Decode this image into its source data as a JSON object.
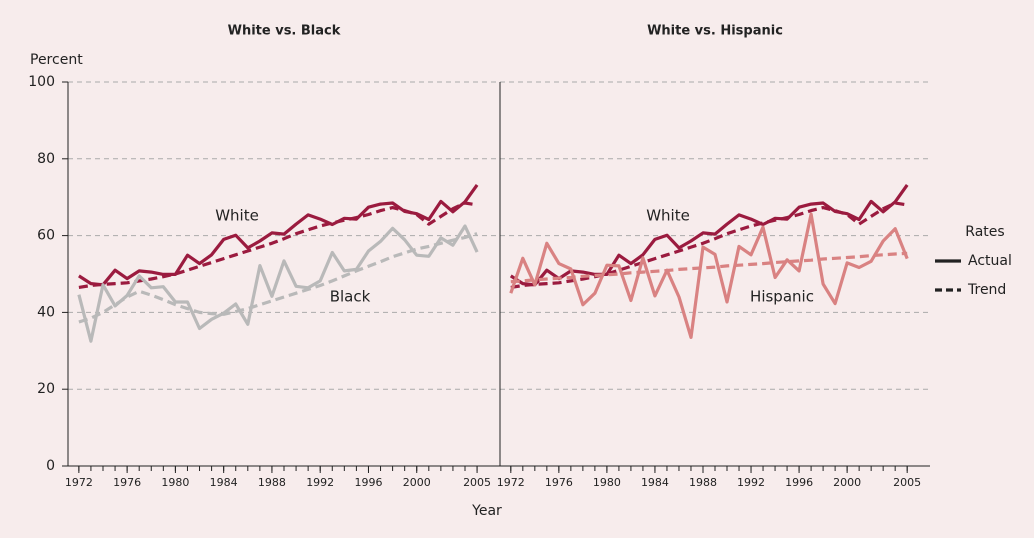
{
  "chart_data": [
    {
      "type": "line",
      "title": "White vs. Black",
      "x": [
        1972,
        1973,
        1974,
        1975,
        1976,
        1977,
        1978,
        1979,
        1980,
        1981,
        1982,
        1983,
        1984,
        1985,
        1986,
        1987,
        1988,
        1989,
        1990,
        1991,
        1992,
        1993,
        1994,
        1995,
        1996,
        1997,
        1998,
        1999,
        2000,
        2001,
        2002,
        2003,
        2004,
        2005
      ],
      "xlim": [
        1971.1,
        2006.9
      ],
      "xticks": [
        1972,
        1976,
        1980,
        1984,
        1988,
        1992,
        1996,
        2000,
        2005
      ],
      "ylim": [
        0,
        100
      ],
      "yticks": [
        0,
        20,
        40,
        60,
        80,
        100
      ],
      "grid": true,
      "series": [
        {
          "name": "White",
          "color": "#9b1b3f",
          "values": [
            49.5,
            47.5,
            47.2,
            51,
            48.8,
            50.8,
            50.5,
            49.9,
            49.9,
            54.9,
            52.7,
            55,
            59,
            60.1,
            56.8,
            58.6,
            60.7,
            60.4,
            63,
            65.4,
            64.3,
            62.9,
            64.5,
            64.3,
            67.4,
            68.2,
            68.5,
            66.3,
            65.7,
            64.2,
            68.9,
            66.2,
            68.8,
            73.2
          ],
          "trend": [
            46.5,
            47,
            47.3,
            47.5,
            47.7,
            48.2,
            48.7,
            49.3,
            50,
            51,
            52,
            53,
            54,
            55,
            56,
            57,
            58,
            59.2,
            60.5,
            61.5,
            62.5,
            63.3,
            64,
            64.7,
            65.5,
            66.5,
            67.3,
            66.5,
            65.5,
            63,
            65,
            67,
            68.5,
            68
          ]
        },
        {
          "name": "Black",
          "color": "#b9b9b9",
          "values": [
            44.6,
            32.5,
            47.2,
            41.7,
            44.4,
            49.5,
            46.4,
            46.7,
            42.7,
            42.7,
            35.8,
            38.2,
            39.8,
            42.2,
            36.9,
            52.2,
            44.2,
            53.4,
            46.8,
            46.4,
            48.2,
            55.6,
            50.8,
            51.2,
            56,
            58.5,
            61.9,
            58.9,
            54.9,
            54.6,
            59.4,
            57.5,
            62.5,
            55.7
          ],
          "trend": [
            37.5,
            38.5,
            40,
            42,
            44,
            45.5,
            44.5,
            43.3,
            42,
            41,
            40,
            39.7,
            39.5,
            40.2,
            41,
            42,
            43,
            44,
            45,
            46,
            47,
            48.2,
            49.5,
            50.8,
            52,
            53.2,
            54.5,
            55.5,
            56.5,
            57.2,
            58,
            58.8,
            59.5,
            60.5
          ]
        }
      ]
    },
    {
      "type": "line",
      "title": "White vs. Hispanic",
      "x": [
        1972,
        1973,
        1974,
        1975,
        1976,
        1977,
        1978,
        1979,
        1980,
        1981,
        1982,
        1983,
        1984,
        1985,
        1986,
        1987,
        1988,
        1989,
        1990,
        1991,
        1992,
        1993,
        1994,
        1995,
        1996,
        1997,
        1998,
        1999,
        2000,
        2001,
        2002,
        2003,
        2004,
        2005
      ],
      "xlim": [
        1971.1,
        2006.9
      ],
      "xticks": [
        1972,
        1976,
        1980,
        1984,
        1988,
        1992,
        1996,
        2000,
        2005
      ],
      "ylim": [
        0,
        100
      ],
      "yticks": [
        0,
        20,
        40,
        60,
        80,
        100
      ],
      "grid": true,
      "series": [
        {
          "name": "White",
          "color": "#9b1b3f",
          "values": [
            49.5,
            47.5,
            47.2,
            51,
            48.8,
            50.8,
            50.5,
            49.9,
            49.9,
            54.9,
            52.7,
            55,
            59,
            60.1,
            56.8,
            58.6,
            60.7,
            60.4,
            63,
            65.4,
            64.3,
            62.9,
            64.5,
            64.3,
            67.4,
            68.2,
            68.5,
            66.3,
            65.7,
            64.2,
            68.9,
            66.2,
            68.8,
            73.2
          ],
          "trend": [
            46.5,
            47,
            47.3,
            47.5,
            47.7,
            48.2,
            48.7,
            49.3,
            50,
            51,
            52,
            53,
            54,
            55,
            56,
            57,
            58,
            59.2,
            60.5,
            61.5,
            62.5,
            63.3,
            64,
            64.7,
            65.5,
            66.5,
            67.3,
            66.5,
            65.5,
            63,
            65,
            67,
            68.5,
            68
          ]
        },
        {
          "name": "Hispanic",
          "color": "#d98282",
          "values": [
            45,
            54.1,
            47.2,
            58,
            52.7,
            51.3,
            42,
            45,
            52.3,
            52.1,
            43.1,
            54.2,
            44.3,
            51,
            44,
            33.5,
            57,
            55.1,
            42.7,
            57.2,
            55,
            62.2,
            49.1,
            53.7,
            50.8,
            65.6,
            47.4,
            42.3,
            52.9,
            51.7,
            53.3,
            58.6,
            61.8,
            54
          ],
          "trend": [
            48.0,
            48.2,
            48.5,
            48.7,
            48.9,
            49.1,
            49.4,
            49.6,
            49.8,
            50.0,
            50.3,
            50.5,
            50.7,
            50.9,
            51.2,
            51.4,
            51.6,
            51.8,
            52.1,
            52.3,
            52.5,
            52.7,
            53.0,
            53.2,
            53.4,
            53.6,
            53.9,
            54.1,
            54.3,
            54.5,
            54.8,
            55.0,
            55.2,
            55.4
          ]
        }
      ]
    }
  ],
  "ylabel": "Percent",
  "xlabel": "Year",
  "legend": {
    "title": "Rates",
    "items": [
      "Actual",
      "Trend"
    ]
  }
}
